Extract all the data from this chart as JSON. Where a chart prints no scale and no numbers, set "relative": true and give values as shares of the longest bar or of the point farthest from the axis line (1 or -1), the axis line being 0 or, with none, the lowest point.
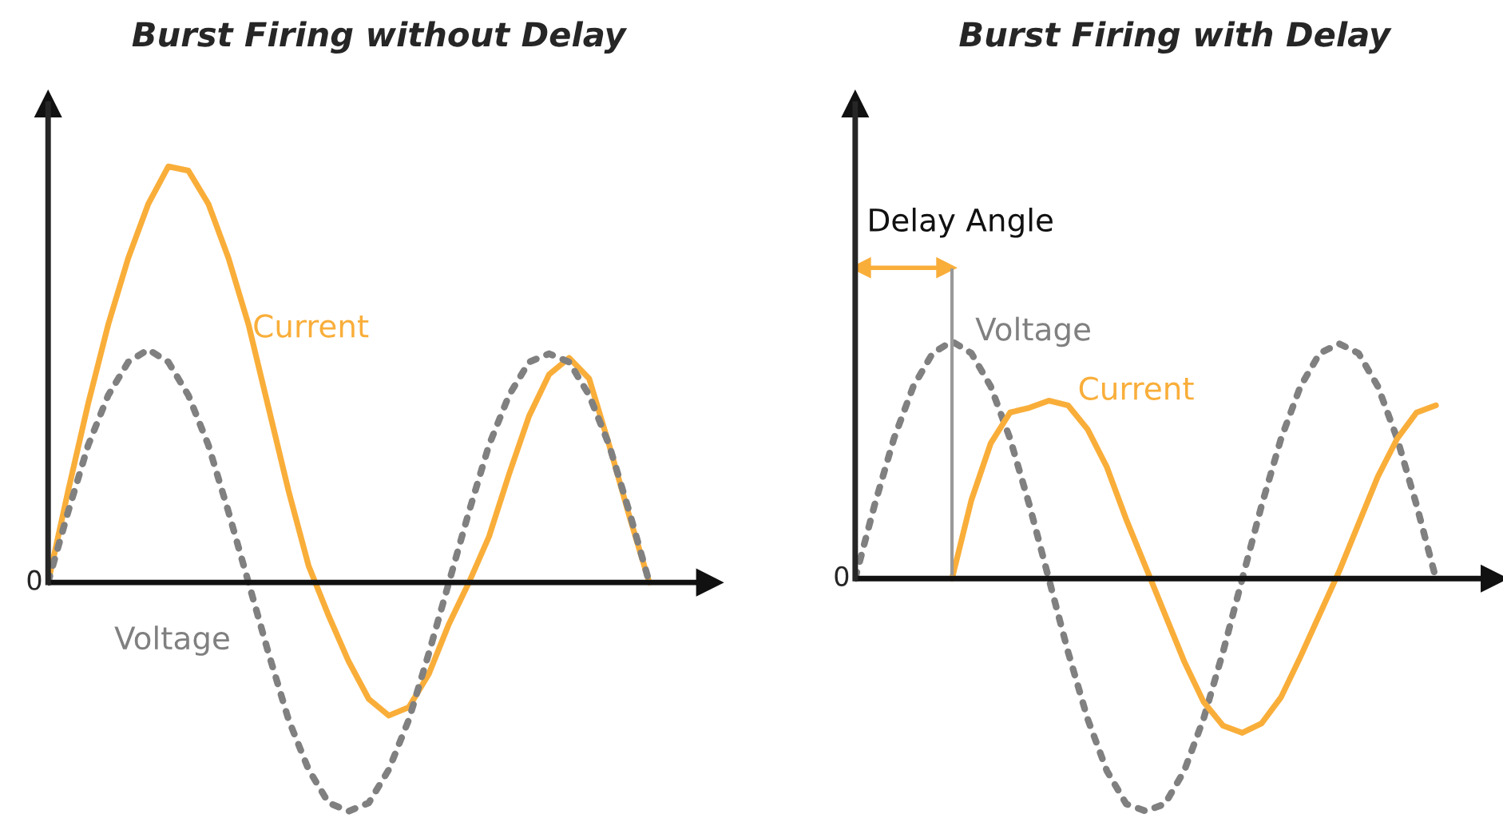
{
  "chart_data": [
    {
      "type": "line",
      "title": "Burst Firing without Delay",
      "relative": true,
      "legend": false,
      "marker": "none",
      "categories": [
        null,
        null,
        null,
        null,
        null,
        null,
        null,
        null,
        null,
        null,
        null,
        null,
        null,
        null,
        null,
        null,
        null,
        null,
        null,
        null,
        null,
        null,
        null,
        null,
        null,
        null,
        null,
        null,
        null,
        null,
        null
      ],
      "annotations": [
        "0"
      ],
      "series": [
        {
          "name": "Current",
          "color": "#f9ae3a",
          "line_style": "solid",
          "values": [
            0,
            0.22,
            0.43,
            0.62,
            0.78,
            0.91,
            1.0,
            0.99,
            0.91,
            0.78,
            0.62,
            0.42,
            0.22,
            0.04,
            -0.08,
            -0.19,
            -0.28,
            -0.32,
            -0.3,
            -0.22,
            -0.1,
            0,
            0.11,
            0.26,
            0.4,
            0.5,
            0.54,
            0.49,
            0.33,
            0.16,
            0
          ]
        },
        {
          "name": "Voltage",
          "color": "#808080",
          "line_style": "dotted",
          "values": [
            0,
            0.17,
            0.33,
            0.45,
            0.53,
            0.56,
            0.53,
            0.45,
            0.33,
            0.17,
            0,
            -0.17,
            -0.33,
            -0.45,
            -0.53,
            -0.55,
            -0.53,
            -0.45,
            -0.33,
            -0.17,
            0,
            0.17,
            0.33,
            0.45,
            0.53,
            0.55,
            0.53,
            0.45,
            0.33,
            0.17,
            0
          ]
        }
      ]
    },
    {
      "type": "line",
      "title": "Burst Firing with Delay",
      "relative": true,
      "legend": false,
      "marker": "none",
      "categories": [
        null,
        null,
        null,
        null,
        null,
        null,
        null,
        null,
        null,
        null,
        null,
        null,
        null,
        null,
        null,
        null,
        null,
        null,
        null,
        null,
        null,
        null,
        null,
        null,
        null,
        null,
        null,
        null,
        null,
        null,
        null
      ],
      "annotations": [
        "0",
        "Delay Angle"
      ],
      "series": [
        {
          "name": "Voltage",
          "color": "#808080",
          "line_style": "dotted",
          "values": [
            0,
            0.31,
            0.59,
            0.81,
            0.95,
            1.0,
            0.95,
            0.81,
            0.59,
            0.31,
            0,
            -0.31,
            -0.59,
            -0.81,
            -0.95,
            -0.98,
            -0.95,
            -0.81,
            -0.59,
            -0.31,
            0,
            0.31,
            0.59,
            0.81,
            0.95,
            0.99,
            0.95,
            0.81,
            0.59,
            0.31,
            0
          ]
        },
        {
          "name": "Current",
          "color": "#f9ae3a",
          "line_style": "solid",
          "values": [
            null,
            null,
            null,
            null,
            null,
            0,
            0.33,
            0.57,
            0.7,
            0.72,
            0.75,
            0.73,
            0.63,
            0.47,
            0.25,
            0.05,
            -0.15,
            -0.35,
            -0.52,
            -0.62,
            -0.65,
            -0.61,
            -0.5,
            -0.33,
            -0.15,
            0.03,
            0.23,
            0.43,
            0.59,
            0.7,
            0.73
          ]
        }
      ]
    }
  ]
}
